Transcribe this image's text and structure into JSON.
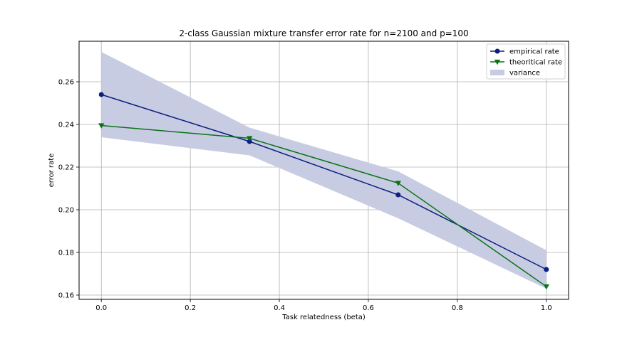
{
  "chart_data": {
    "type": "line",
    "title": "2-class Gaussian mixture transfer error rate for n=2100 and p=100",
    "xlabel": "Task relatedness (beta)",
    "ylabel": "error rate",
    "xlim": [
      -0.05,
      1.05
    ],
    "ylim": [
      0.158,
      0.279
    ],
    "xticks": [
      0.0,
      0.2,
      0.4,
      0.6,
      0.8,
      1.0
    ],
    "xtick_labels": [
      "0.0",
      "0.2",
      "0.4",
      "0.6",
      "0.8",
      "1.0"
    ],
    "yticks": [
      0.16,
      0.18,
      0.2,
      0.22,
      0.24,
      0.26
    ],
    "ytick_labels": [
      "0.16",
      "0.18",
      "0.20",
      "0.22",
      "0.24",
      "0.26"
    ],
    "grid": true,
    "legend_position": "top-right",
    "x": [
      0.0,
      0.333,
      0.667,
      1.0
    ],
    "series": [
      {
        "name": "empirical rate",
        "marker": "circle",
        "color": "#0c1f80",
        "values": [
          0.254,
          0.232,
          0.207,
          0.172
        ]
      },
      {
        "name": "theoritical rate",
        "marker": "triangle-down",
        "color": "#0a7316",
        "values": [
          0.2395,
          0.2335,
          0.2125,
          0.164
        ]
      }
    ],
    "band": {
      "name": "variance",
      "color": "#c8cce3",
      "upper": [
        0.274,
        0.2385,
        0.218,
        0.181
      ],
      "lower": [
        0.234,
        0.2255,
        0.196,
        0.163
      ]
    }
  }
}
